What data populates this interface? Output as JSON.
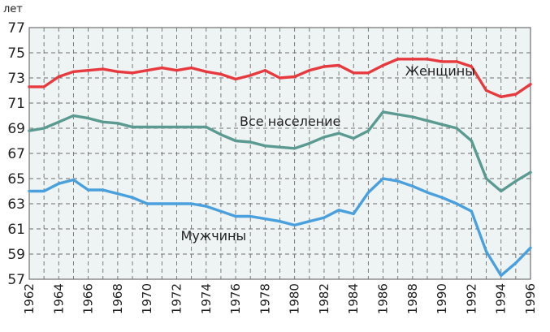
{
  "chart_data": {
    "type": "line",
    "title": "",
    "xlabel": "",
    "ylabel": "лет",
    "xlim": [
      1962,
      1996
    ],
    "ylim": [
      57,
      77
    ],
    "y_ticks": [
      "57",
      "59",
      "61",
      "63",
      "65",
      "67",
      "69",
      "71",
      "73",
      "75",
      "77"
    ],
    "x_ticks": [
      "1962",
      "1964",
      "1966",
      "1968",
      "1970",
      "1972",
      "1974",
      "1976",
      "1978",
      "1980",
      "1982",
      "1984",
      "1986",
      "1988",
      "1990",
      "1992",
      "1994",
      "1996"
    ],
    "grid": true,
    "legend": "inline labels",
    "x": [
      1962,
      1963,
      1964,
      1965,
      1966,
      1967,
      1968,
      1969,
      1970,
      1971,
      1972,
      1973,
      1974,
      1975,
      1976,
      1977,
      1978,
      1979,
      1980,
      1981,
      1982,
      1983,
      1984,
      1985,
      1986,
      1987,
      1988,
      1989,
      1990,
      1991,
      1992,
      1993,
      1994,
      1995,
      1996
    ],
    "series": [
      {
        "name": "Женщины",
        "color": "#e63a3f",
        "values": [
          72.3,
          72.3,
          73.1,
          73.5,
          73.6,
          73.7,
          73.5,
          73.4,
          73.6,
          73.8,
          73.6,
          73.8,
          73.5,
          73.3,
          72.9,
          73.2,
          73.6,
          73.0,
          73.1,
          73.6,
          73.9,
          74.0,
          73.4,
          73.4,
          74.0,
          74.5,
          74.5,
          74.5,
          74.3,
          74.3,
          73.9,
          72.0,
          71.5,
          71.7,
          72.5
        ]
      },
      {
        "name": "Все население",
        "color": "#5b9a91",
        "values": [
          68.8,
          69.0,
          69.5,
          70.0,
          69.8,
          69.5,
          69.4,
          69.1,
          69.1,
          69.1,
          69.1,
          69.1,
          69.1,
          68.5,
          68.0,
          67.9,
          67.6,
          67.5,
          67.4,
          67.8,
          68.3,
          68.6,
          68.2,
          68.8,
          70.3,
          70.1,
          69.9,
          69.6,
          69.3,
          69.0,
          68.0,
          65.0,
          64.0,
          64.8,
          65.5
        ]
      },
      {
        "name": "Мужчины",
        "color": "#4aa0dd",
        "values": [
          64.0,
          64.0,
          64.6,
          64.9,
          64.1,
          64.1,
          63.8,
          63.5,
          63.0,
          63.0,
          63.0,
          63.0,
          62.8,
          62.4,
          62.0,
          62.0,
          61.8,
          61.6,
          61.3,
          61.6,
          61.9,
          62.5,
          62.2,
          63.9,
          65.0,
          64.8,
          64.4,
          63.9,
          63.5,
          63.0,
          62.4,
          59.2,
          57.3,
          58.3,
          59.5
        ]
      }
    ]
  }
}
